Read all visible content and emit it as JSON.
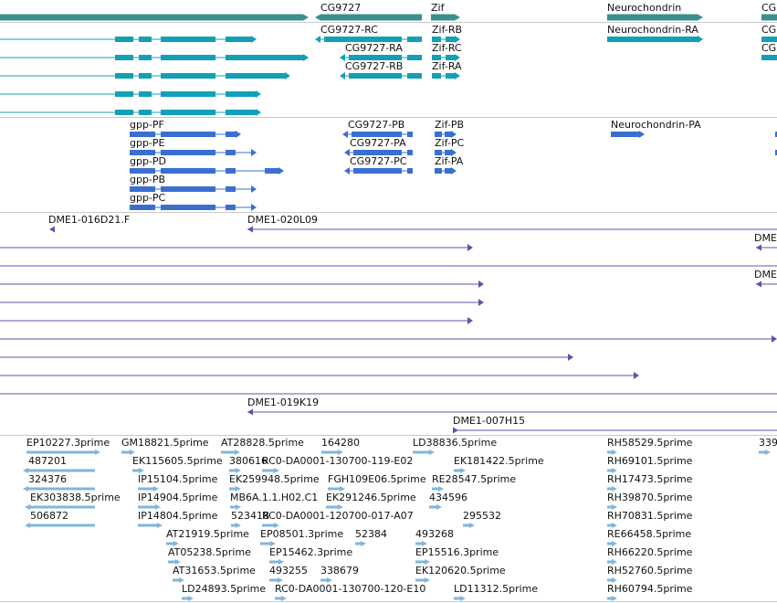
{
  "colors": {
    "gene_span": "#3d8f8e",
    "transcript": "#11a0b6",
    "polypeptide": "#3a6fd0",
    "bac": "#6a4fa8",
    "est": "#7fb6dc",
    "separator": "#c9c9c9"
  },
  "tracks": {
    "genes": {
      "labels": [
        "CG9727",
        "Zif",
        "Neurochondrin",
        "CG"
      ]
    },
    "transcripts": {
      "labels": [
        "CG9727-RC",
        "Zif-RB",
        "Neurochondrin-RA",
        "CG",
        "CG9727-RA",
        "Zif-RC",
        "CG",
        "CG9727-RB",
        "Zif-RA"
      ]
    },
    "polypeptides": {
      "labels": [
        "gpp-PF",
        "CG9727-PB",
        "Zif-PB",
        "Neurochondrin-PA",
        "gpp-PE",
        "CG9727-PA",
        "Zif-PC",
        "gpp-PD",
        "CG9727-PC",
        "Zif-PA",
        "gpp-PB",
        "gpp-PC"
      ]
    },
    "bacs": {
      "labels": [
        "DME1-016D21.F",
        "DME1-020L09",
        "DME",
        "DME",
        "DME1-019K19",
        "DME1-007H15"
      ]
    },
    "ests": {
      "labels": [
        "EP10227.3prime",
        "GM18821.5prime",
        "AT28828.5prime",
        "164280",
        "LD38836.5prime",
        "RH58529.5prime",
        "339",
        "487201",
        "EK115605.5prime",
        "380616",
        "RC0-DA0001-130700-119-E02",
        "EK181422.5prime",
        "RH69101.5prime",
        "324376",
        "IP15104.5prime",
        "EK259948.5prime",
        "FGH109E06.5prime",
        "RE28547.5prime",
        "RH17473.5prime",
        "EK303838.5prime",
        "IP14904.5prime",
        "MB6A.1.1.H02.C1",
        "EK291246.5prime",
        "434596",
        "RH39870.5prime",
        "506872",
        "IP14804.5prime",
        "523418",
        "RC0-DA0001-120700-017-A07",
        "295532",
        "RH70831.5prime",
        "AT21919.5prime",
        "EP08501.3prime",
        "52384",
        "493268",
        "RE66458.5prime",
        "AT05238.5prime",
        "EP15462.3prime",
        "EP15516.3prime",
        "RH66220.5prime",
        "AT31653.5prime",
        "493255",
        "338679",
        "EK120620.5prime",
        "RH52760.5prime",
        "LD24893.5prime",
        "RC0-DA0001-130700-120-E10",
        "LD11312.5prime",
        "RH60794.5prime"
      ]
    }
  }
}
